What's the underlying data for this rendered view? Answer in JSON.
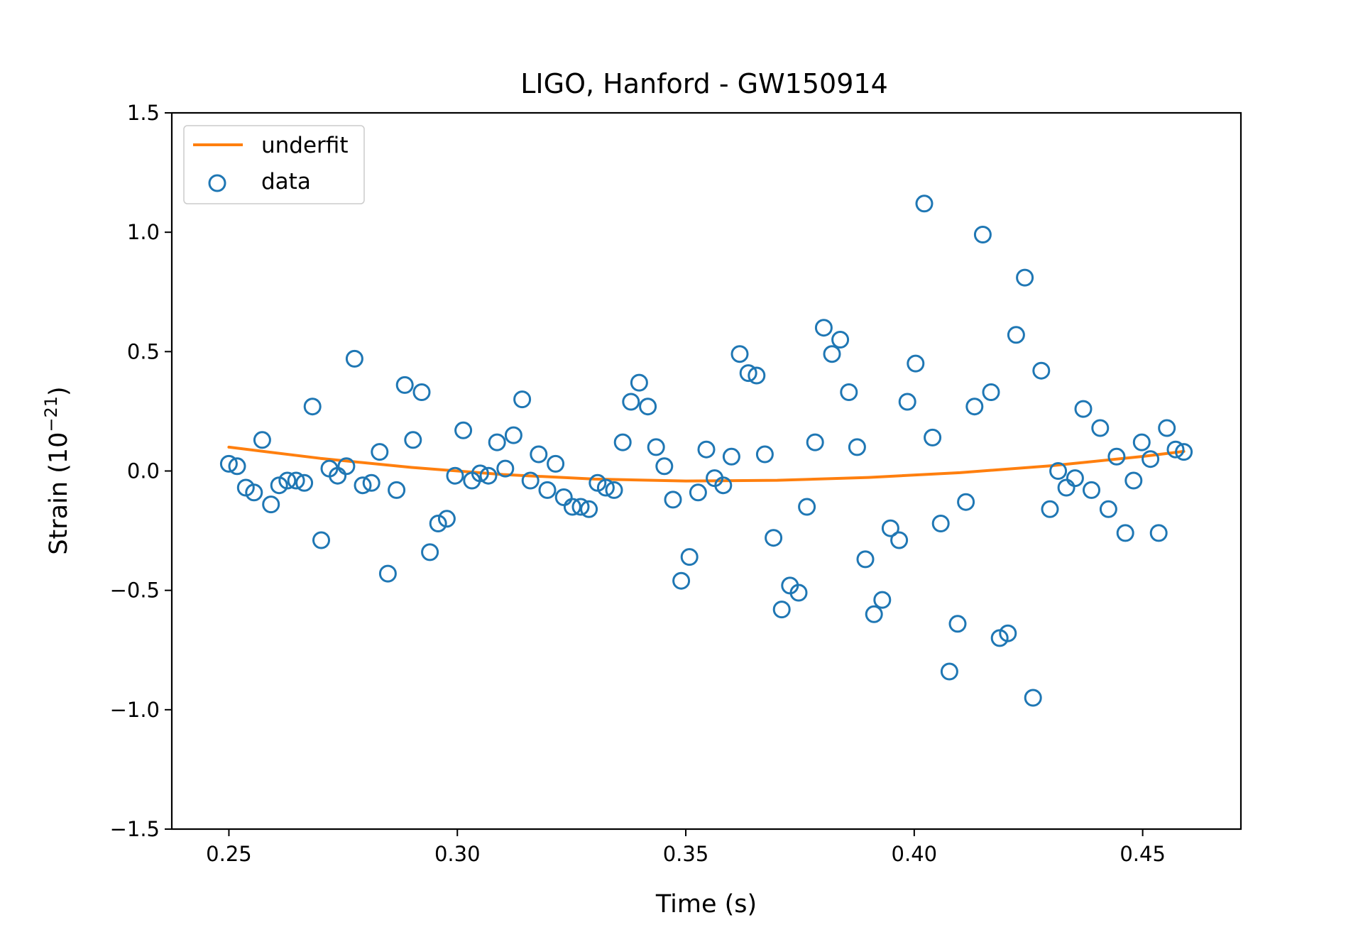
{
  "colors": {
    "fit_line": "#ff7f0e",
    "data_marker": "#1f77b4",
    "axes": "#000000",
    "background": "#ffffff"
  },
  "chart_data": {
    "type": "scatter",
    "title": "LIGO, Hanford - GW150914",
    "xlabel": "Time (s)",
    "ylabel_prefix": "Strain (10",
    "ylabel_exponent": "−21",
    "ylabel_suffix": ")",
    "xlim": [
      0.2375,
      0.4715
    ],
    "ylim": [
      -1.5,
      1.5
    ],
    "xticks": [
      0.25,
      0.3,
      0.35,
      0.4,
      0.45
    ],
    "xtick_labels": [
      "0.25",
      "0.30",
      "0.35",
      "0.40",
      "0.45"
    ],
    "yticks": [
      -1.5,
      -1.0,
      -0.5,
      0.0,
      0.5,
      1.0,
      1.5
    ],
    "ytick_labels": [
      "−1.5",
      "−1.0",
      "−0.5",
      "0.0",
      "0.5",
      "1.0",
      "1.5"
    ],
    "grid": false,
    "legend": {
      "placement": "top-left",
      "entries": [
        {
          "label": "underfit",
          "kind": "line",
          "color": "#ff7f0e"
        },
        {
          "label": "data",
          "kind": "marker",
          "color": "#1f77b4"
        }
      ]
    },
    "series": [
      {
        "name": "underfit",
        "kind": "line",
        "color": "#ff7f0e",
        "x": [
          0.25,
          0.27,
          0.29,
          0.31,
          0.33,
          0.35,
          0.37,
          0.39,
          0.41,
          0.43,
          0.45,
          0.459
        ],
        "y": [
          0.1,
          0.053,
          0.015,
          -0.015,
          -0.034,
          -0.042,
          -0.039,
          -0.027,
          -0.007,
          0.022,
          0.061,
          0.082
        ]
      },
      {
        "name": "data",
        "kind": "scatter",
        "color": "#1f77b4",
        "x": [
          0.25,
          0.2518,
          0.2537,
          0.2555,
          0.2573,
          0.2592,
          0.261,
          0.2628,
          0.2647,
          0.2665,
          0.2683,
          0.2702,
          0.272,
          0.2738,
          0.2757,
          0.2775,
          0.2793,
          0.2812,
          0.283,
          0.2848,
          0.2867,
          0.2885,
          0.2903,
          0.2922,
          0.294,
          0.2958,
          0.2977,
          0.2995,
          0.3013,
          0.3032,
          0.305,
          0.3068,
          0.3087,
          0.3105,
          0.3123,
          0.3142,
          0.316,
          0.3178,
          0.3197,
          0.3215,
          0.3233,
          0.3252,
          0.327,
          0.3288,
          0.3307,
          0.3325,
          0.3343,
          0.3362,
          0.338,
          0.3398,
          0.3417,
          0.3435,
          0.3453,
          0.3472,
          0.349,
          0.3508,
          0.3527,
          0.3545,
          0.3563,
          0.3582,
          0.36,
          0.3618,
          0.3637,
          0.3655,
          0.3673,
          0.3692,
          0.371,
          0.3728,
          0.3747,
          0.3765,
          0.3783,
          0.3802,
          0.382,
          0.3838,
          0.3857,
          0.3875,
          0.3893,
          0.3912,
          0.393,
          0.3948,
          0.3967,
          0.3985,
          0.4003,
          0.4022,
          0.404,
          0.4058,
          0.4077,
          0.4095,
          0.4113,
          0.4132,
          0.415,
          0.4168,
          0.4187,
          0.4205,
          0.4223,
          0.4242,
          0.426,
          0.4278,
          0.4297,
          0.4315,
          0.4333,
          0.4352,
          0.437,
          0.4388,
          0.4407,
          0.4425,
          0.4443,
          0.4462,
          0.448,
          0.4498,
          0.4517,
          0.4535,
          0.4553,
          0.4572,
          0.459
        ],
        "y": [
          0.03,
          0.02,
          -0.07,
          -0.09,
          0.13,
          -0.14,
          -0.06,
          -0.04,
          -0.04,
          -0.05,
          0.27,
          -0.29,
          0.01,
          -0.02,
          0.02,
          0.47,
          -0.06,
          -0.05,
          0.08,
          -0.43,
          -0.08,
          0.36,
          0.13,
          0.33,
          -0.34,
          -0.22,
          -0.2,
          -0.02,
          0.17,
          -0.04,
          -0.01,
          -0.02,
          0.12,
          0.01,
          0.15,
          0.3,
          -0.04,
          0.07,
          -0.08,
          0.03,
          -0.11,
          -0.15,
          -0.15,
          -0.16,
          -0.05,
          -0.07,
          -0.08,
          0.12,
          0.29,
          0.37,
          0.27,
          0.1,
          0.02,
          -0.12,
          -0.46,
          -0.36,
          -0.09,
          0.09,
          -0.03,
          -0.06,
          0.06,
          0.49,
          0.41,
          0.4,
          0.07,
          -0.28,
          -0.58,
          -0.48,
          -0.51,
          -0.15,
          0.12,
          0.6,
          0.49,
          0.55,
          0.33,
          0.1,
          -0.37,
          -0.6,
          -0.54,
          -0.24,
          -0.29,
          0.29,
          0.45,
          1.12,
          0.14,
          -0.22,
          -0.84,
          -0.64,
          -0.13,
          0.27,
          0.99,
          0.33,
          -0.7,
          -0.68,
          0.57,
          0.81,
          -0.95,
          0.42,
          -0.16,
          0.0,
          -0.07,
          -0.03,
          0.26,
          -0.08,
          0.18,
          -0.16,
          0.06,
          -0.26,
          -0.04,
          0.12,
          0.05,
          -0.26,
          0.18,
          0.09,
          0.08
        ]
      }
    ]
  }
}
